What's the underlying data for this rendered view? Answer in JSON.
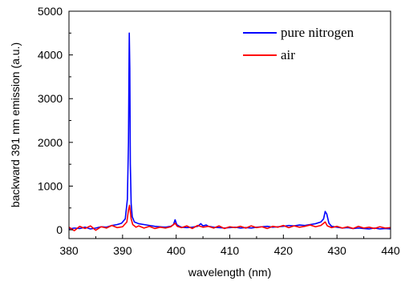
{
  "chart_data": {
    "type": "line",
    "xlabel": "wavelength (nm)",
    "ylabel": "backward 391 nm emission (a.u.)",
    "xlim": [
      380,
      440
    ],
    "ylim": [
      -200,
      5000
    ],
    "xticks": [
      380,
      390,
      400,
      410,
      420,
      430,
      440
    ],
    "xtick_labels": [
      "380",
      "390",
      "400",
      "410",
      "420",
      "430",
      "440"
    ],
    "yticks": [
      0,
      1000,
      2000,
      3000,
      4000,
      5000
    ],
    "ytick_labels": [
      "0",
      "1000",
      "2000",
      "3000",
      "4000",
      "5000"
    ],
    "grid": false,
    "legend_position": "top-right",
    "series": [
      {
        "name": "pure nitrogen",
        "color": "#0000ff",
        "x": [
          380,
          381,
          382,
          383,
          384,
          385,
          386,
          387,
          388,
          389,
          389.8,
          390.5,
          390.9,
          391.1,
          391.25,
          391.35,
          391.45,
          391.6,
          391.8,
          392.2,
          393,
          394,
          395,
          396,
          397,
          398,
          399,
          399.5,
          399.8,
          400.1,
          400.6,
          401,
          402,
          403,
          404,
          404.6,
          405,
          405.6,
          406,
          407,
          408,
          409,
          410,
          411,
          412,
          413,
          414,
          415,
          416,
          417,
          418,
          419,
          420,
          421,
          422,
          423,
          424,
          425,
          426,
          427,
          427.5,
          427.8,
          428.1,
          428.5,
          429,
          430,
          431,
          432,
          433,
          434,
          435,
          436,
          437,
          438,
          439,
          440
        ],
        "y": [
          20,
          40,
          30,
          60,
          20,
          40,
          70,
          60,
          100,
          120,
          150,
          250,
          700,
          2000,
          4500,
          3700,
          1500,
          600,
          300,
          180,
          140,
          120,
          100,
          80,
          70,
          60,
          80,
          120,
          230,
          120,
          80,
          60,
          50,
          60,
          80,
          140,
          90,
          110,
          80,
          60,
          50,
          40,
          50,
          60,
          40,
          50,
          40,
          60,
          70,
          80,
          60,
          70,
          80,
          100,
          90,
          110,
          100,
          120,
          140,
          180,
          250,
          420,
          360,
          150,
          80,
          60,
          40,
          50,
          30,
          40,
          30,
          20,
          40,
          20,
          30,
          20
        ]
      },
      {
        "name": "air",
        "color": "#ff0000",
        "x": [
          380,
          381,
          382,
          383,
          384,
          385,
          386,
          387,
          388,
          389,
          390,
          390.8,
          391.1,
          391.3,
          391.45,
          391.6,
          391.9,
          392.5,
          393,
          394,
          395,
          396,
          397,
          398,
          399,
          399.8,
          400.2,
          401,
          402,
          403,
          404,
          405,
          406,
          407,
          408,
          409,
          410,
          411,
          412,
          413,
          414,
          415,
          416,
          417,
          418,
          419,
          420,
          421,
          422,
          423,
          424,
          425,
          426,
          427,
          427.8,
          428.2,
          429,
          430,
          431,
          432,
          433,
          434,
          435,
          436,
          437,
          438,
          439,
          440
        ],
        "y": [
          60,
          -20,
          80,
          30,
          90,
          -10,
          70,
          40,
          100,
          50,
          70,
          180,
          450,
          560,
          420,
          250,
          120,
          60,
          90,
          40,
          80,
          30,
          60,
          40,
          70,
          150,
          80,
          50,
          90,
          30,
          100,
          60,
          80,
          40,
          90,
          30,
          70,
          50,
          80,
          40,
          90,
          50,
          70,
          30,
          80,
          60,
          100,
          50,
          90,
          60,
          80,
          110,
          70,
          100,
          180,
          90,
          50,
          80,
          40,
          70,
          30,
          80,
          40,
          60,
          30,
          70,
          40,
          50
        ]
      }
    ]
  }
}
